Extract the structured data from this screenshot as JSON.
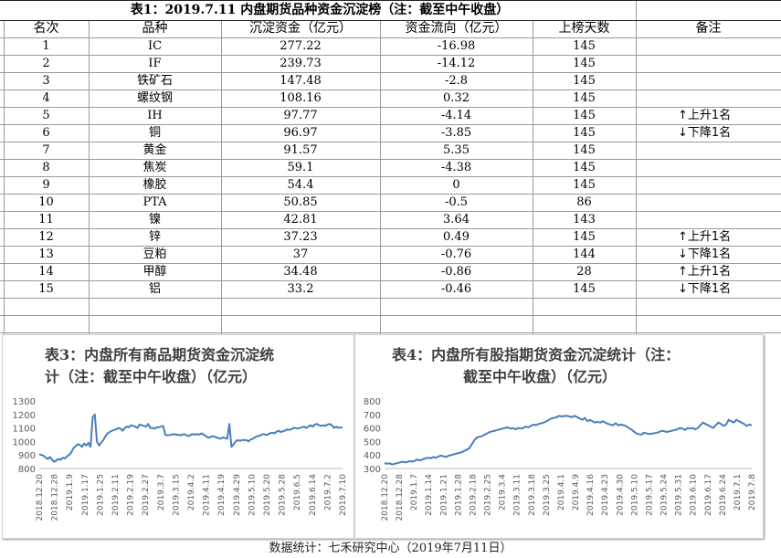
{
  "table": {
    "title": "表1：2019.7.11 内盘期货品种资金沉淀榜（注：截至中午收盘）",
    "headers": [
      "名次",
      "品种",
      "沉淀资金（亿元）",
      "资金流向（亿元）",
      "上榜天数",
      "备注"
    ],
    "rows": [
      {
        "rank": "1",
        "name": "IC",
        "fund": "277.22",
        "flow": "-16.98",
        "days": "145",
        "note": ""
      },
      {
        "rank": "2",
        "name": "IF",
        "fund": "239.73",
        "flow": "-14.12",
        "days": "145",
        "note": ""
      },
      {
        "rank": "3",
        "name": "铁矿石",
        "fund": "147.48",
        "flow": "-2.8",
        "days": "145",
        "note": ""
      },
      {
        "rank": "4",
        "name": "螺纹钢",
        "fund": "108.16",
        "flow": "0.32",
        "days": "145",
        "note": ""
      },
      {
        "rank": "5",
        "name": "IH",
        "fund": "97.77",
        "flow": "-4.14",
        "days": "145",
        "note": "上升1名",
        "arrow": "↑"
      },
      {
        "rank": "6",
        "name": "铜",
        "fund": "96.97",
        "flow": "-3.85",
        "days": "145",
        "note": "下降1名",
        "arrow": "↓"
      },
      {
        "rank": "7",
        "name": "黄金",
        "fund": "91.57",
        "flow": "5.35",
        "days": "145",
        "note": ""
      },
      {
        "rank": "8",
        "name": "焦炭",
        "fund": "59.1",
        "flow": "-4.38",
        "days": "145",
        "note": ""
      },
      {
        "rank": "9",
        "name": "橡胶",
        "fund": "54.4",
        "flow": "0",
        "days": "145",
        "note": ""
      },
      {
        "rank": "10",
        "name": "PTA",
        "fund": "50.85",
        "flow": "-0.5",
        "days": "86",
        "note": ""
      },
      {
        "rank": "11",
        "name": "镍",
        "fund": "42.81",
        "flow": "3.64",
        "days": "143",
        "note": ""
      },
      {
        "rank": "12",
        "name": "锌",
        "fund": "37.23",
        "flow": "0.49",
        "days": "145",
        "note": "上升1名",
        "arrow": "↑"
      },
      {
        "rank": "13",
        "name": "豆粕",
        "fund": "37",
        "flow": "-0.76",
        "days": "144",
        "note": "下降1名",
        "arrow": "↓"
      },
      {
        "rank": "14",
        "name": "甲醇",
        "fund": "34.48",
        "flow": "-0.86",
        "days": "28",
        "note": "上升1名",
        "arrow": "↑"
      },
      {
        "rank": "15",
        "name": "铝",
        "fund": "33.2",
        "flow": "-0.46",
        "days": "145",
        "note": "下降1名",
        "arrow": "↓"
      }
    ]
  },
  "chart_data": [
    {
      "type": "line",
      "title": "表3：内盘所有商品期货资金沉淀统计（注：截至中午收盘）（亿元）",
      "title_line1": "表3：内盘所有商品期货资金沉淀统",
      "title_line2": "计（注：截至中午收盘）（亿元）",
      "ylim": [
        800,
        1300
      ],
      "yticks": [
        "800",
        "900",
        "1000",
        "1100",
        "1200",
        "1300"
      ],
      "xticks": [
        "2018.12.20",
        "2018.12.28",
        "2019.1.9",
        "2019.1.17",
        "2019.1.25",
        "2019.2.11",
        "2019.2.19",
        "2019.2.27",
        "2019.3.7",
        "2019.3.15",
        "2019.4.2",
        "2019.4.11",
        "2019.4.19",
        "2019.4.29",
        "2019.5.10",
        "2019.5.20",
        "2019.5.28",
        "2019.6.5",
        "2019.6.14",
        "2019.7.2",
        "2019.7.10"
      ],
      "color": "#4a7ebb",
      "series": [
        {
          "values": [
            905,
            900,
            895,
            880,
            870,
            885,
            865,
            850,
            860,
            870,
            865,
            880,
            875,
            890,
            900,
            920,
            950,
            965,
            980,
            975,
            960,
            985,
            970,
            990,
            960,
            1180,
            1200,
            1000,
            970,
            990,
            1010,
            1040,
            1060,
            1070,
            1080,
            1085,
            1090,
            1100,
            1095,
            1080,
            1100,
            1110,
            1105,
            1120,
            1115,
            1110,
            1100,
            1125,
            1120,
            1115,
            1110,
            1130,
            1100,
            1100,
            1095,
            1105,
            1105,
            1110,
            1115,
            1050,
            1045,
            1048,
            1050,
            1055,
            1050,
            1050,
            1045,
            1050,
            1055,
            1045,
            1040,
            1050,
            1055,
            1050,
            1055,
            1050,
            1060,
            1050,
            1040,
            1030,
            1030,
            1040,
            1035,
            1030,
            1025,
            1020,
            1030,
            1025,
            1020,
            1130,
            960,
            980,
            1000,
            1010,
            1005,
            1010,
            1010,
            1010,
            1000,
            1015,
            1020,
            1030,
            1040,
            1040,
            1050,
            1055,
            1050,
            1050,
            1060,
            1065,
            1060,
            1070,
            1080,
            1070,
            1075,
            1080,
            1090,
            1085,
            1090,
            1100,
            1100,
            1095,
            1100,
            1105,
            1110,
            1100,
            1110,
            1120,
            1110,
            1125,
            1130,
            1120,
            1115,
            1120,
            1115,
            1125,
            1130,
            1120,
            1100,
            1110,
            1100,
            1105,
            1100
          ]
        }
      ]
    },
    {
      "type": "line",
      "title": "表4：内盘所有股指期货资金沉淀统计（注：截至中午收盘）（亿元）",
      "title_line1": "表4：内盘所有股指期货资金沉淀统计（注：",
      "title_line2": "截至中午收盘）（亿元）",
      "ylim": [
        300,
        800
      ],
      "yticks": [
        "300",
        "400",
        "500",
        "600",
        "700",
        "800"
      ],
      "xticks": [
        "2018.12.20",
        "2018.12.28",
        "2019.1.7",
        "2019.1.14",
        "2019.1.21",
        "2019.1.28",
        "2019.2.18",
        "2019.2.25",
        "2019.3.4",
        "2019.3.11",
        "2019.3.18",
        "2019.3.25",
        "2019.4.1",
        "2019.4.9",
        "2019.4.16",
        "2019.4.23",
        "2019.4.30",
        "2019.5.10",
        "2019.5.17",
        "2019.5.24",
        "2019.5.31",
        "2019.6.10",
        "2019.6.17",
        "2019.6.24",
        "2019.7.1",
        "2019.7.8"
      ],
      "color": "#4a7ebb",
      "series": [
        {
          "values": [
            340,
            335,
            338,
            330,
            335,
            340,
            345,
            350,
            345,
            350,
            355,
            350,
            360,
            365,
            360,
            370,
            375,
            380,
            375,
            385,
            380,
            390,
            395,
            390,
            385,
            395,
            400,
            405,
            410,
            415,
            420,
            430,
            440,
            450,
            480,
            510,
            530,
            535,
            540,
            550,
            560,
            570,
            575,
            580,
            585,
            590,
            595,
            600,
            605,
            595,
            600,
            590,
            600,
            595,
            600,
            610,
            605,
            615,
            625,
            620,
            630,
            635,
            640,
            650,
            660,
            670,
            675,
            680,
            690,
            685,
            688,
            690,
            685,
            680,
            690,
            680,
            670,
            660,
            675,
            650,
            660,
            650,
            640,
            645,
            640,
            650,
            640,
            630,
            625,
            620,
            635,
            620,
            625,
            620,
            615,
            600,
            590,
            575,
            560,
            555,
            550,
            565,
            560,
            555,
            558,
            560,
            565,
            570,
            580,
            575,
            570,
            575,
            580,
            585,
            590,
            600,
            595,
            585,
            600,
            595,
            600,
            590,
            600,
            620,
            640,
            630,
            620,
            610,
            600,
            620,
            640,
            630,
            615,
            625,
            660,
            650,
            640,
            660,
            650,
            640,
            630,
            615,
            625,
            620
          ]
        }
      ]
    }
  ],
  "footer": "数据统计：七禾研究中心（2019年7月11日）"
}
